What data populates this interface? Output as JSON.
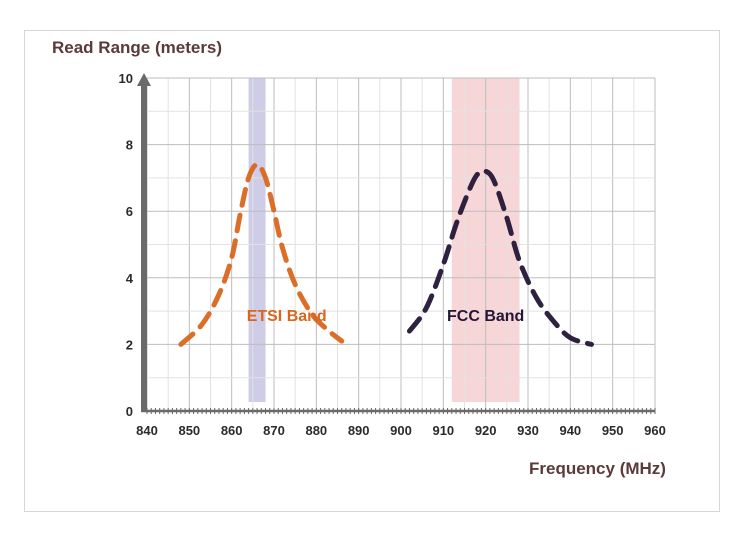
{
  "chart_data": {
    "type": "line",
    "ylabel": "Read Range  (meters)",
    "xlabel": "Frequency (MHz)",
    "xlim": [
      840,
      960
    ],
    "ylim": [
      0,
      10
    ],
    "x_ticks": [
      840,
      850,
      860,
      870,
      880,
      890,
      900,
      910,
      920,
      930,
      940,
      950,
      960
    ],
    "y_ticks": [
      0,
      2,
      4,
      6,
      8,
      10
    ],
    "grid": true,
    "bands": [
      {
        "name": "ETSI Band",
        "x_range": [
          864,
          868
        ],
        "color": "#c9c6e3"
      },
      {
        "name": "FCC Band",
        "x_range": [
          912,
          928
        ],
        "color": "#f6d2d3"
      }
    ],
    "series": [
      {
        "name": "ETSI Band",
        "color": "#d9661c",
        "label_at": [
          873,
          2.7
        ],
        "x": [
          848,
          853,
          857,
          860,
          862,
          864,
          866,
          868,
          870,
          872,
          875,
          879,
          883,
          886
        ],
        "y": [
          2.0,
          2.6,
          3.5,
          4.6,
          5.9,
          7.0,
          7.4,
          7.0,
          6.0,
          4.9,
          3.8,
          2.9,
          2.4,
          2.1
        ]
      },
      {
        "name": "FCC Band",
        "color": "#241637",
        "label_at": [
          920,
          2.7
        ],
        "x": [
          902,
          906,
          910,
          913,
          916,
          918,
          920,
          922,
          925,
          928,
          932,
          936,
          940,
          945
        ],
        "y": [
          2.4,
          3.1,
          4.4,
          5.6,
          6.6,
          7.1,
          7.2,
          6.9,
          5.8,
          4.5,
          3.4,
          2.7,
          2.2,
          2.0
        ]
      }
    ]
  }
}
